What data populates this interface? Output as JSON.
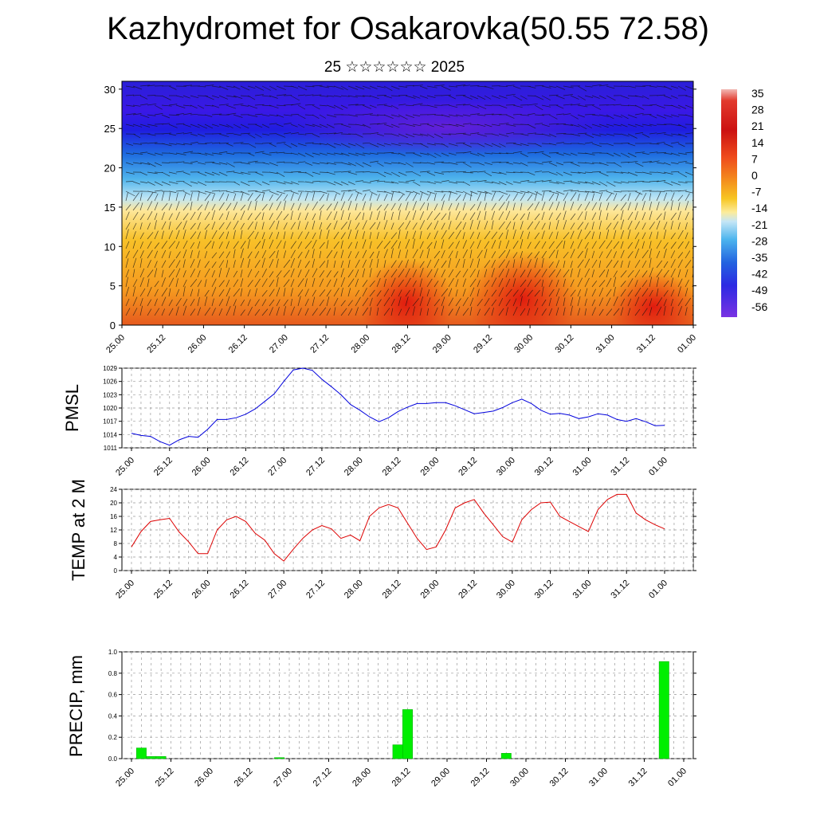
{
  "header": {
    "title": "Kazhydromet for Osakarovka(50.55 72.58)",
    "subtitle": "25 ☆☆☆☆☆☆ 2025"
  },
  "colors": {
    "pmsl_line": "#0000dd",
    "temp_line": "#dd0000",
    "precip_bar": "#00ee00",
    "precip_bar_edge": "#00aa00"
  },
  "time_labels": [
    "25.00",
    "25.12",
    "26.00",
    "26.12",
    "27.00",
    "27.12",
    "28.00",
    "28.12",
    "29.00",
    "29.12",
    "30.00",
    "30.12",
    "31.00",
    "31.12",
    "01.00"
  ],
  "chart_data": [
    {
      "type": "heatmap",
      "title": "",
      "x_ticks": [
        "25.00",
        "25.12",
        "26.00",
        "26.12",
        "27.00",
        "27.12",
        "28.00",
        "28.12",
        "29.00",
        "29.12",
        "30.00",
        "30.12",
        "31.00",
        "31.12",
        "01.00"
      ],
      "y_ticks": [
        0,
        5,
        10,
        15,
        20,
        25,
        30
      ],
      "ylim": [
        0,
        31
      ],
      "colorbar_labels": [
        "35",
        "28",
        "21",
        "14",
        "7",
        "0",
        "-7",
        "-14",
        "-21",
        "-28",
        "-35",
        "-42",
        "-49",
        "-56"
      ],
      "overlay": "wind barbs"
    },
    {
      "type": "line",
      "ylabel": "PMSL",
      "ylim": [
        1011,
        1029
      ],
      "yticks": [
        1011,
        1014,
        1017,
        1020,
        1023,
        1026,
        1029
      ],
      "x_ticks": [
        "25.00",
        "25.12",
        "26.00",
        "26.12",
        "27.00",
        "27.12",
        "28.00",
        "28.12",
        "29.00",
        "29.12",
        "30.00",
        "30.12",
        "31.00",
        "31.12",
        "01.00"
      ],
      "values": [
        1014.3,
        1013.8,
        1013.6,
        1012.4,
        1011.6,
        1012.8,
        1013.6,
        1013.4,
        1015.2,
        1017.4,
        1017.4,
        1017.8,
        1018.6,
        1019.8,
        1021.5,
        1023.2,
        1026.0,
        1028.6,
        1029.0,
        1028.5,
        1026.5,
        1024.8,
        1023.0,
        1020.8,
        1019.5,
        1018.0,
        1016.9,
        1017.8,
        1019.2,
        1020.2,
        1021.0,
        1021.0,
        1021.2,
        1021.2,
        1020.5,
        1019.6,
        1018.7,
        1019.0,
        1019.3,
        1020.1,
        1021.2,
        1022.0,
        1021.0,
        1019.5,
        1018.6,
        1018.8,
        1018.4,
        1017.6,
        1018.0,
        1018.7,
        1018.4,
        1017.4,
        1017.0,
        1017.6,
        1016.9,
        1016.0,
        1016.1
      ]
    },
    {
      "type": "line",
      "ylabel": "TEMP at 2 M",
      "ylim": [
        0,
        24
      ],
      "yticks": [
        0,
        4,
        8,
        12,
        16,
        20,
        24
      ],
      "x_ticks": [
        "25.00",
        "25.12",
        "26.00",
        "26.12",
        "27.00",
        "27.12",
        "28.00",
        "28.12",
        "29.00",
        "29.12",
        "30.00",
        "30.12",
        "31.00",
        "31.12",
        "01.00"
      ],
      "values": [
        7.0,
        11.5,
        14.5,
        15.0,
        15.4,
        11.4,
        8.5,
        5.0,
        5.0,
        12.0,
        15.0,
        16.0,
        14.5,
        11.0,
        9.0,
        5.0,
        2.8,
        6.3,
        9.5,
        12.0,
        13.3,
        12.3,
        9.5,
        10.5,
        8.8,
        16.0,
        18.5,
        19.5,
        18.5,
        14.0,
        9.5,
        6.2,
        7.0,
        12.0,
        18.5,
        20.0,
        21.0,
        17.0,
        13.5,
        10.0,
        8.4,
        15.0,
        18.0,
        20.0,
        20.2,
        16.0,
        14.5,
        13.0,
        11.5,
        18.0,
        21.0,
        22.5,
        22.5,
        17.0,
        15.0,
        13.5,
        12.3
      ]
    },
    {
      "type": "bar",
      "ylabel": "PRECIP, mm",
      "ylim": [
        0,
        1.0
      ],
      "yticks": [
        "0.0",
        "0.2",
        "0.4",
        "0.6",
        "0.8",
        "1.0"
      ],
      "x_ticks": [
        "25.00",
        "25.12",
        "26.00",
        "26.12",
        "27.00",
        "27.12",
        "28.00",
        "28.12",
        "29.00",
        "29.12",
        "30.00",
        "30.12",
        "31.00",
        "31.12",
        "01.00"
      ],
      "bars": [
        {
          "t": 1,
          "value": 0.1
        },
        {
          "t": 2,
          "value": 0.02
        },
        {
          "t": 3,
          "value": 0.02
        },
        {
          "t": 15,
          "value": 0.01
        },
        {
          "t": 27,
          "value": 0.13
        },
        {
          "t": 28,
          "value": 0.46
        },
        {
          "t": 38,
          "value": 0.05
        },
        {
          "t": 54,
          "value": 0.91
        }
      ]
    }
  ]
}
